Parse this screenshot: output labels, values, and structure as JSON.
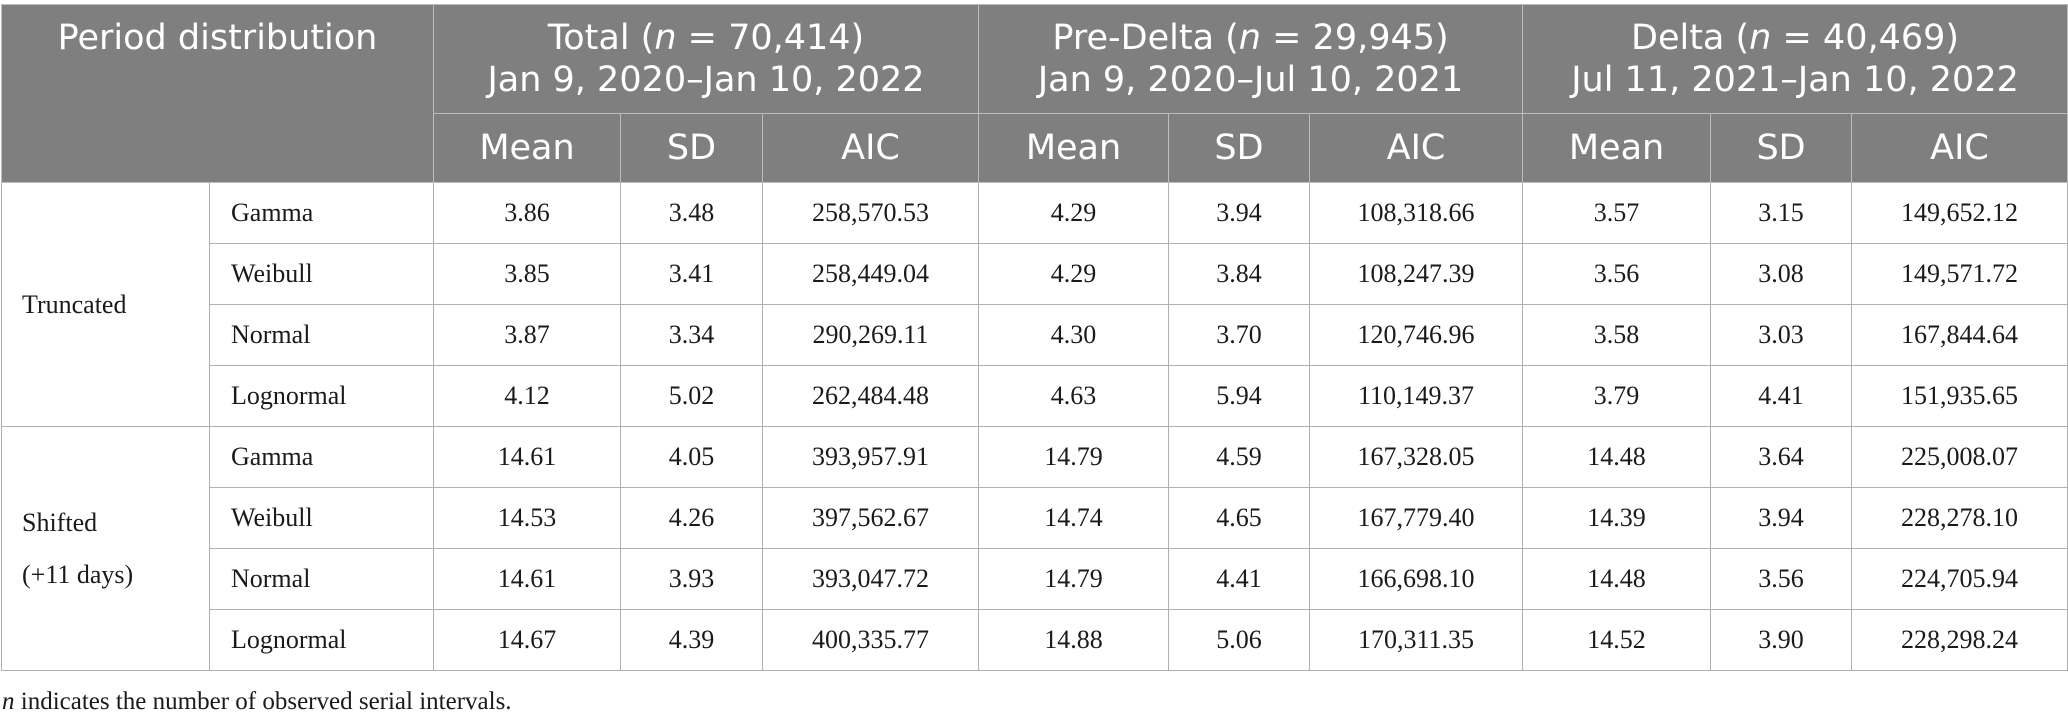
{
  "header": {
    "corner": "Period distribution",
    "groups": [
      {
        "label_prefix": "Total (",
        "n_symbol": "n",
        "n_text": " = 70,414)",
        "range": "Jan 9, 2020–Jan 10, 2022"
      },
      {
        "label_prefix": "Pre-Delta (",
        "n_symbol": "n",
        "n_text": " = 29,945)",
        "range": "Jan 9, 2020–Jul 10, 2021"
      },
      {
        "label_prefix": "Delta (",
        "n_symbol": "n",
        "n_text": " = 40,469)",
        "range": "Jul 11, 2021–Jan 10, 2022"
      }
    ],
    "subcols": [
      "Mean",
      "SD",
      "AIC"
    ]
  },
  "methods": [
    {
      "label_lines": [
        "Truncated"
      ]
    },
    {
      "label_lines": [
        "Shifted",
        "(+11 days)"
      ]
    }
  ],
  "rows": [
    {
      "dist": "Gamma",
      "cells": [
        "3.86",
        "3.48",
        "258,570.53",
        "4.29",
        "3.94",
        "108,318.66",
        "3.57",
        "3.15",
        "149,652.12"
      ]
    },
    {
      "dist": "Weibull",
      "cells": [
        "3.85",
        "3.41",
        "258,449.04",
        "4.29",
        "3.84",
        "108,247.39",
        "3.56",
        "3.08",
        "149,571.72"
      ]
    },
    {
      "dist": "Normal",
      "cells": [
        "3.87",
        "3.34",
        "290,269.11",
        "4.30",
        "3.70",
        "120,746.96",
        "3.58",
        "3.03",
        "167,844.64"
      ]
    },
    {
      "dist": "Lognormal",
      "cells": [
        "4.12",
        "5.02",
        "262,484.48",
        "4.63",
        "5.94",
        "110,149.37",
        "3.79",
        "4.41",
        "151,935.65"
      ]
    },
    {
      "dist": "Gamma",
      "cells": [
        "14.61",
        "4.05",
        "393,957.91",
        "14.79",
        "4.59",
        "167,328.05",
        "14.48",
        "3.64",
        "225,008.07"
      ]
    },
    {
      "dist": "Weibull",
      "cells": [
        "14.53",
        "4.26",
        "397,562.67",
        "14.74",
        "4.65",
        "167,779.40",
        "14.39",
        "3.94",
        "228,278.10"
      ]
    },
    {
      "dist": "Normal",
      "cells": [
        "14.61",
        "3.93",
        "393,047.72",
        "14.79",
        "4.41",
        "166,698.10",
        "14.48",
        "3.56",
        "224,705.94"
      ]
    },
    {
      "dist": "Lognormal",
      "cells": [
        "14.67",
        "4.39",
        "400,335.77",
        "14.88",
        "5.06",
        "170,311.35",
        "14.52",
        "3.90",
        "228,298.24"
      ]
    }
  ],
  "footnote": {
    "symbol": "n",
    "text": " indicates the number of observed serial intervals."
  },
  "colors": {
    "header_bg": "#7f7f7f",
    "header_text": "#ffffff",
    "border": "#b0b0b0"
  }
}
